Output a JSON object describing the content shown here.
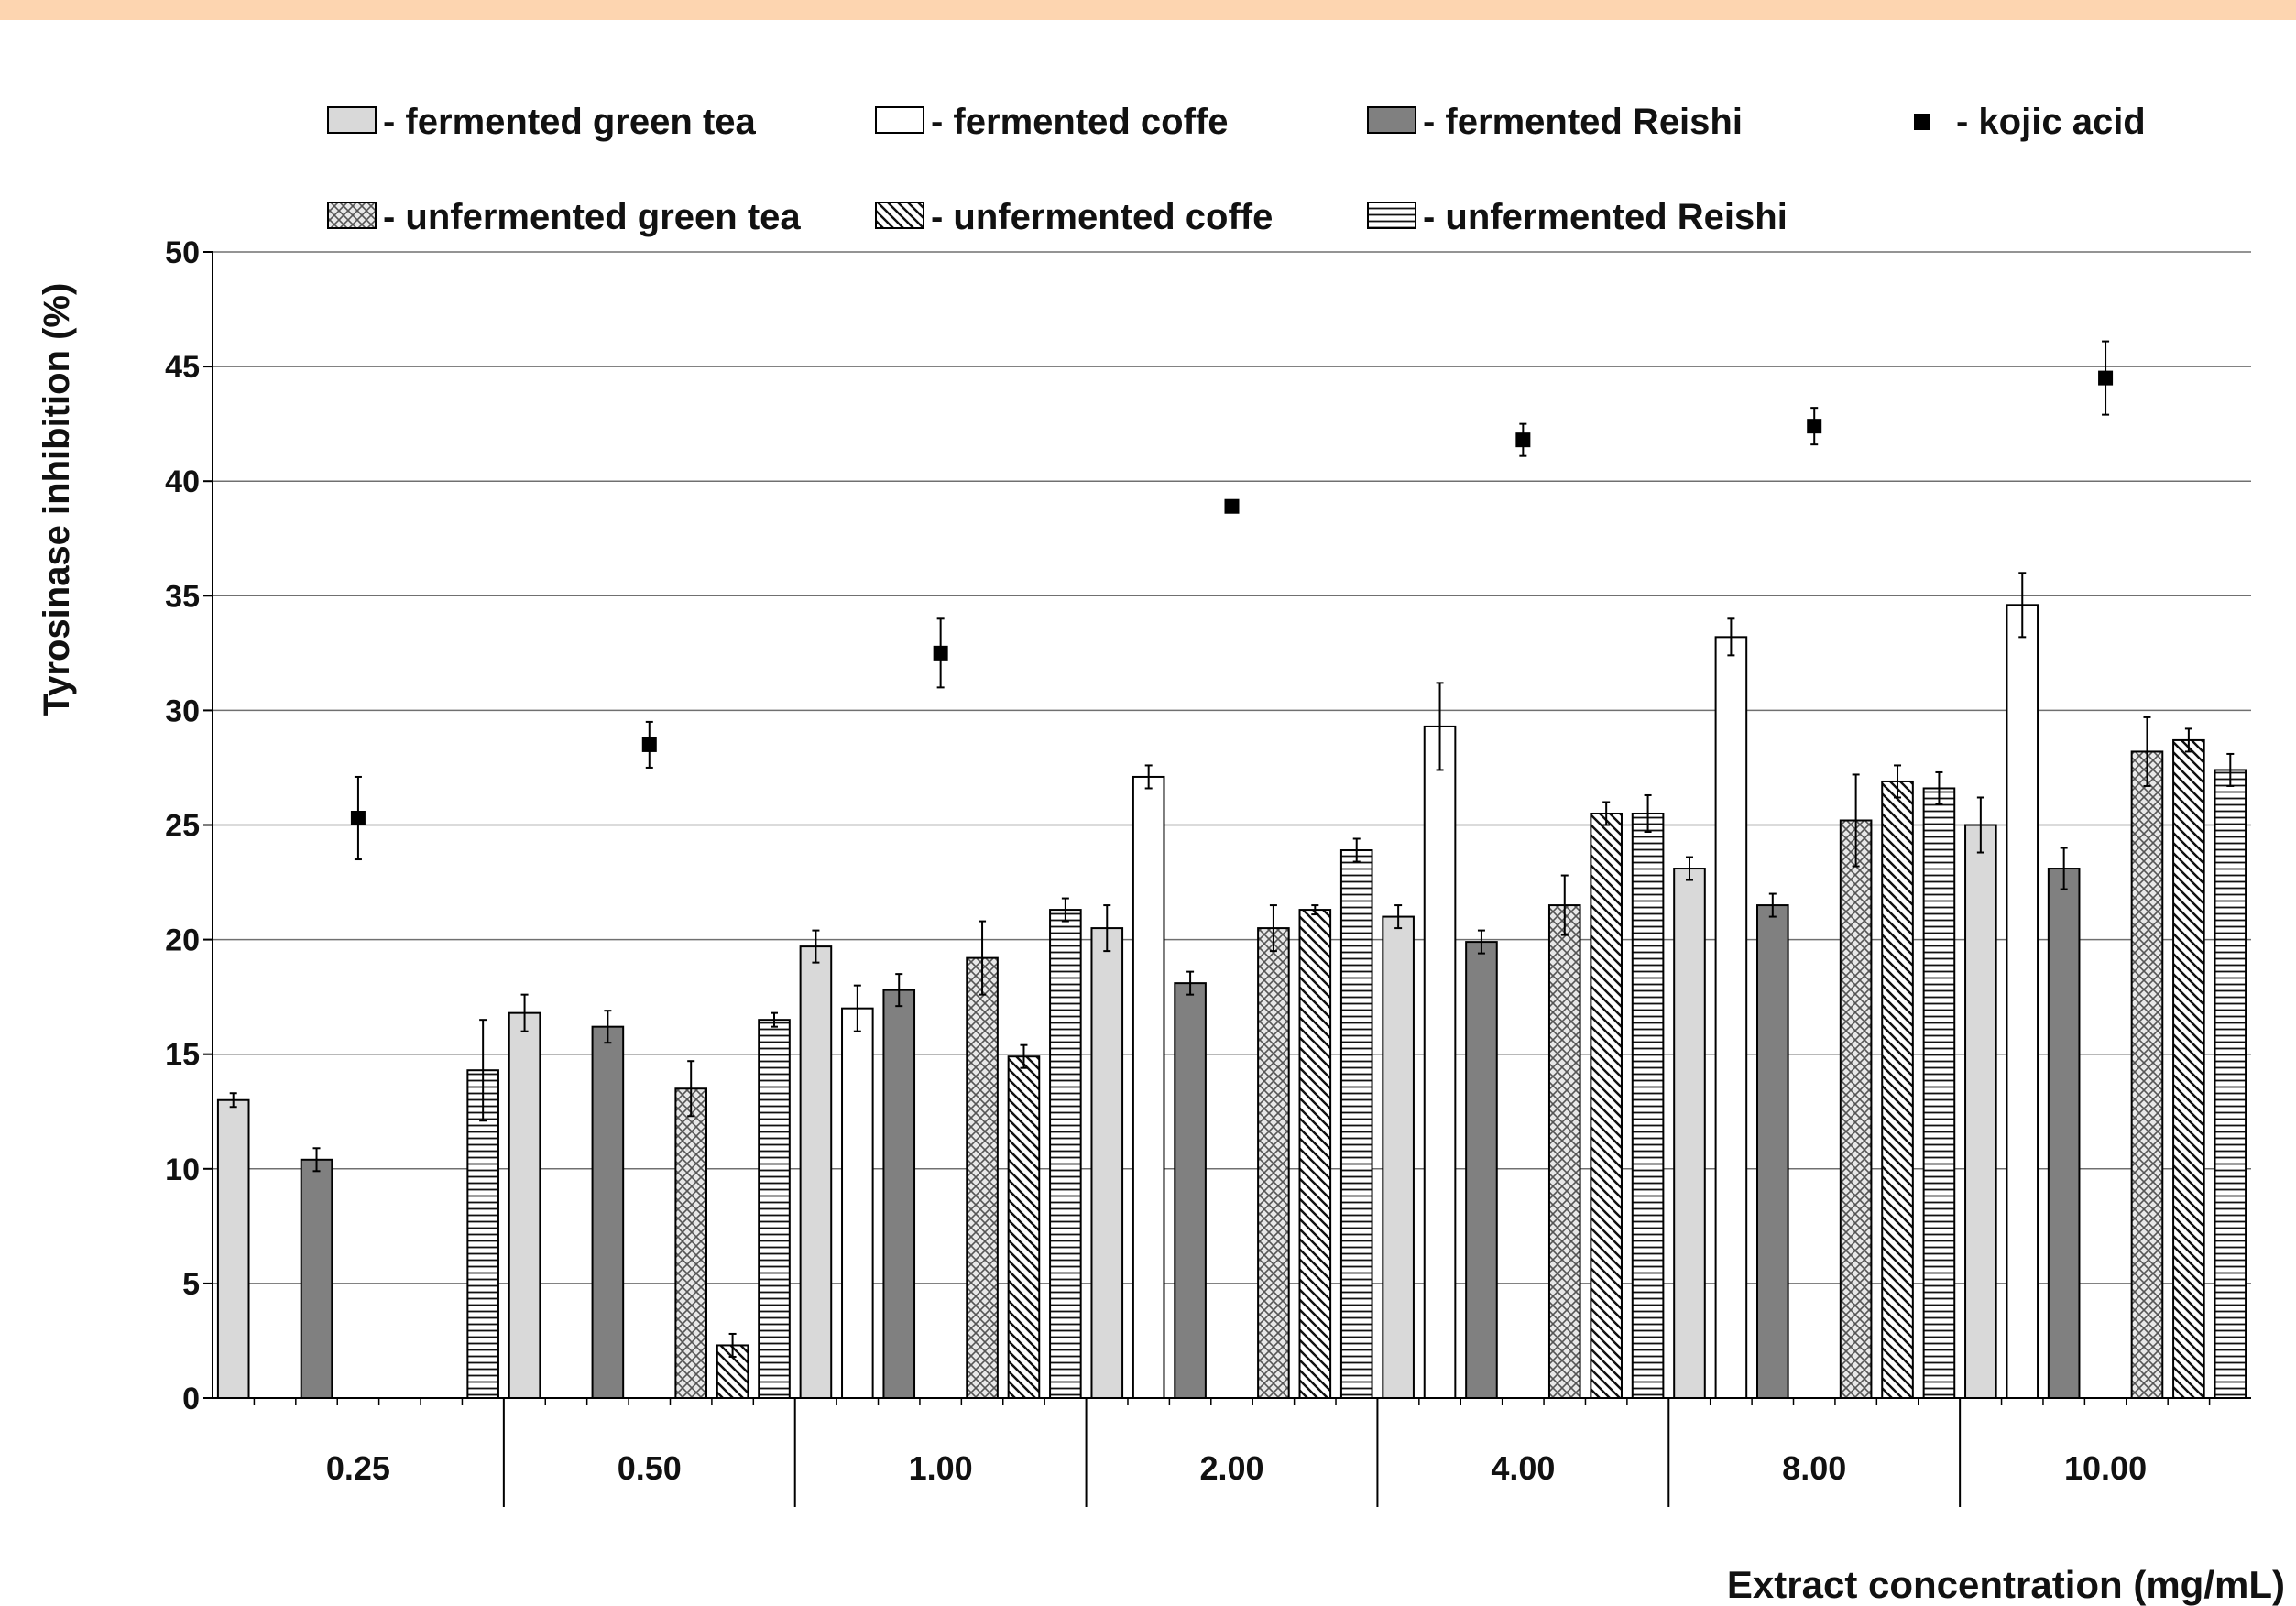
{
  "colors": {
    "top_band": "#FDD5B0",
    "grid": "#707070",
    "axis": "#000000"
  },
  "chart_data": {
    "type": "bar",
    "xlabel": "Extract concentration (mg/mL)",
    "ylabel": "Tyrosinase inhibition (%)",
    "ylim": [
      0,
      50
    ],
    "yticks": [
      0,
      5,
      10,
      15,
      20,
      25,
      30,
      35,
      40,
      45,
      50
    ],
    "grid": true,
    "legend_position": "top",
    "categories": [
      "0.25",
      "0.50",
      "1.00",
      "2.00",
      "4.00",
      "8.00",
      "10.00"
    ],
    "series": [
      {
        "name": "- fermented green tea",
        "kind": "bar",
        "pattern": "light",
        "fill": "#D9D9D9",
        "values": [
          13.0,
          16.8,
          19.7,
          20.5,
          21.0,
          23.1,
          25.0
        ],
        "errors": [
          0.3,
          0.8,
          0.7,
          1.0,
          0.5,
          0.5,
          1.2
        ]
      },
      {
        "name": "- fermented coffe",
        "kind": "bar",
        "pattern": "white",
        "fill": "#FFFFFF",
        "values": [
          0,
          0,
          17.0,
          27.1,
          29.3,
          33.2,
          34.6
        ],
        "errors": [
          0,
          0,
          1.0,
          0.5,
          1.9,
          0.8,
          1.4
        ]
      },
      {
        "name": "- fermented Reishi",
        "kind": "bar",
        "pattern": "dark",
        "fill": "#808080",
        "values": [
          10.4,
          16.2,
          17.8,
          18.1,
          19.9,
          21.5,
          23.1
        ],
        "errors": [
          0.5,
          0.7,
          0.7,
          0.5,
          0.5,
          0.5,
          0.9
        ]
      },
      {
        "name": "- kojic acid",
        "kind": "marker",
        "values": [
          25.3,
          28.5,
          32.5,
          38.9,
          41.8,
          42.4,
          44.5
        ],
        "errors": [
          1.8,
          1.0,
          1.5,
          0,
          0.7,
          0.8,
          1.6
        ]
      },
      {
        "name": "- unfermented green tea",
        "kind": "bar",
        "pattern": "crosshatch",
        "fill": "#E2E2E2",
        "values": [
          0,
          13.5,
          19.2,
          20.5,
          21.5,
          25.2,
          28.2
        ],
        "errors": [
          0,
          1.2,
          1.6,
          1.0,
          1.3,
          2.0,
          1.5
        ]
      },
      {
        "name": "- unfermented coffe",
        "kind": "bar",
        "pattern": "diagonal",
        "fill": "#FFFFFF",
        "values": [
          0,
          2.3,
          14.9,
          21.3,
          25.5,
          26.9,
          28.7
        ],
        "errors": [
          0,
          0.5,
          0.5,
          0.2,
          0.5,
          0.7,
          0.5
        ]
      },
      {
        "name": "- unfermented Reishi",
        "kind": "bar",
        "pattern": "horizontal",
        "fill": "#FFFFFF",
        "values": [
          14.3,
          16.5,
          21.3,
          23.9,
          25.5,
          26.6,
          27.4
        ],
        "errors": [
          2.2,
          0.3,
          0.5,
          0.5,
          0.8,
          0.7,
          0.7
        ]
      }
    ]
  }
}
